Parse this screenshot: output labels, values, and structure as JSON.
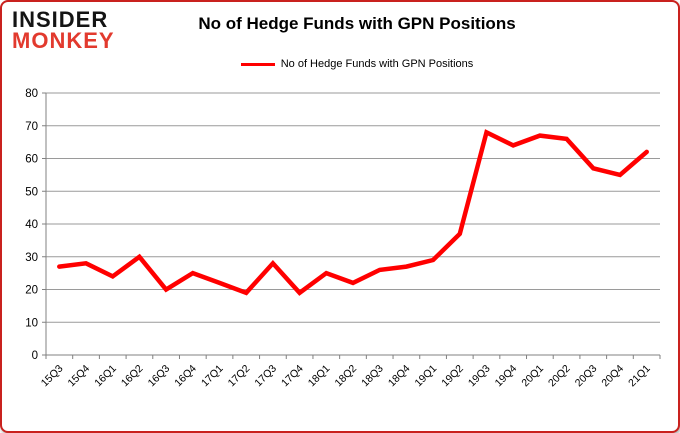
{
  "logo": {
    "line1": "INSIDER",
    "line2": "MONKEY"
  },
  "header": {
    "title": "No of Hedge Funds with GPN Positions"
  },
  "legend": {
    "label": "No of Hedge Funds with GPN Positions"
  },
  "colors": {
    "line": "#ff0000",
    "grid": "#9a9a9a",
    "axis": "#808080",
    "text": "#000000",
    "frame_border": "#c9211e",
    "logo_black": "#141414",
    "logo_red": "#e23a2e"
  },
  "chart_data": {
    "type": "line",
    "title": "No of Hedge Funds with GPN Positions",
    "series_name": "No of Hedge Funds with GPN Positions",
    "categories": [
      "15Q3",
      "15Q4",
      "16Q1",
      "16Q2",
      "16Q3",
      "16Q4",
      "17Q1",
      "17Q2",
      "17Q3",
      "17Q4",
      "18Q1",
      "18Q2",
      "18Q3",
      "18Q4",
      "19Q1",
      "19Q2",
      "19Q3",
      "19Q4",
      "20Q1",
      "20Q2",
      "20Q3",
      "20Q4",
      "21Q1"
    ],
    "values": [
      27,
      28,
      24,
      30,
      20,
      25,
      22,
      19,
      28,
      19,
      25,
      22,
      26,
      27,
      29,
      37,
      68,
      64,
      67,
      66,
      57,
      55,
      62
    ],
    "ylim": [
      0,
      80
    ],
    "ytick_step": 10,
    "grid": true,
    "legend_position": "top"
  }
}
